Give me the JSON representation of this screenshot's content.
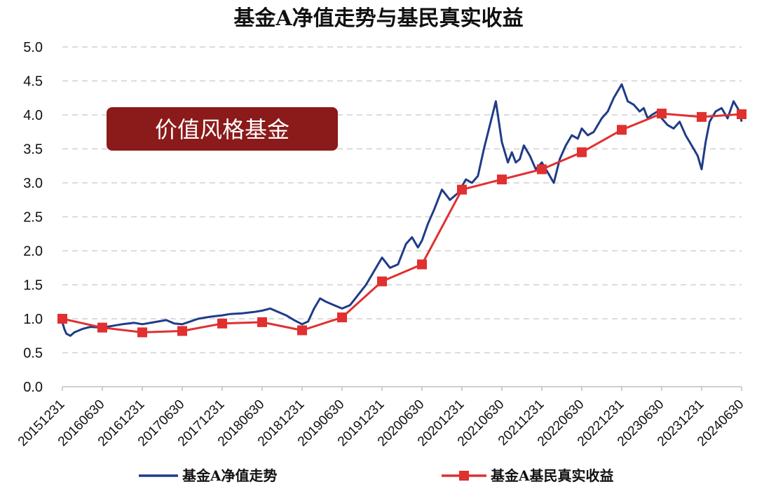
{
  "chart_data": {
    "type": "line",
    "title": "基金A净值走势与基民真实收益",
    "annotation": "价值风格基金",
    "ylim": [
      0.0,
      5.0
    ],
    "yticks": [
      "0.0",
      "0.5",
      "1.0",
      "1.5",
      "2.0",
      "2.5",
      "3.0",
      "3.5",
      "4.0",
      "4.5",
      "5.0"
    ],
    "grid": "horizontal dashed",
    "legend": "bottom",
    "colors": {
      "series1": "#1f3c88",
      "series2": "#e03030",
      "badge": "#8b1a1a"
    },
    "categories": [
      "20151231",
      "20160630",
      "20161231",
      "20170630",
      "20171231",
      "20180630",
      "20181231",
      "20190630",
      "20191231",
      "20200630",
      "20201231",
      "20210630",
      "20211231",
      "20220630",
      "20221231",
      "20230630",
      "20231231",
      "20240630"
    ],
    "series": [
      {
        "name": "基金A净值走势",
        "x": [
          0,
          0.05,
          0.1,
          0.2,
          0.3,
          0.5,
          0.7,
          1.0,
          1.3,
          1.5,
          1.8,
          2.0,
          2.3,
          2.6,
          2.8,
          3.0,
          3.4,
          3.7,
          4.0,
          4.2,
          4.5,
          4.8,
          5.0,
          5.2,
          5.4,
          5.6,
          5.8,
          6.0,
          6.15,
          6.3,
          6.45,
          6.6,
          6.8,
          7.0,
          7.2,
          7.4,
          7.6,
          7.8,
          8.0,
          8.2,
          8.4,
          8.6,
          8.75,
          8.9,
          9.0,
          9.15,
          9.3,
          9.5,
          9.7,
          9.9,
          10.0,
          10.1,
          10.25,
          10.4,
          10.55,
          10.7,
          10.85,
          11.0,
          11.15,
          11.25,
          11.35,
          11.45,
          11.55,
          11.7,
          11.85,
          12.0,
          12.15,
          12.3,
          12.45,
          12.6,
          12.75,
          12.9,
          13.0,
          13.15,
          13.3,
          13.5,
          13.65,
          13.8,
          14.0,
          14.15,
          14.3,
          14.45,
          14.55,
          14.65,
          14.75,
          14.9,
          15.0,
          15.15,
          15.3,
          15.45,
          15.6,
          15.75,
          15.9,
          16.0,
          16.1,
          16.2,
          16.35,
          16.5,
          16.65,
          16.8,
          16.95,
          17.0
        ],
        "values": [
          0.95,
          0.85,
          0.78,
          0.75,
          0.8,
          0.85,
          0.88,
          0.87,
          0.9,
          0.92,
          0.94,
          0.92,
          0.95,
          0.98,
          0.93,
          0.92,
          1.0,
          1.03,
          1.05,
          1.07,
          1.08,
          1.1,
          1.12,
          1.15,
          1.1,
          1.05,
          0.98,
          0.92,
          0.96,
          1.15,
          1.3,
          1.25,
          1.2,
          1.15,
          1.2,
          1.35,
          1.5,
          1.7,
          1.9,
          1.75,
          1.8,
          2.1,
          2.2,
          2.05,
          2.15,
          2.4,
          2.6,
          2.9,
          2.75,
          2.85,
          2.95,
          3.05,
          3.0,
          3.1,
          3.5,
          3.85,
          4.2,
          3.6,
          3.3,
          3.45,
          3.3,
          3.35,
          3.55,
          3.4,
          3.2,
          3.3,
          3.15,
          3.0,
          3.35,
          3.55,
          3.7,
          3.65,
          3.8,
          3.7,
          3.75,
          3.95,
          4.05,
          4.25,
          4.45,
          4.2,
          4.15,
          4.05,
          4.1,
          3.95,
          4.0,
          4.05,
          3.95,
          3.85,
          3.8,
          3.9,
          3.7,
          3.55,
          3.4,
          3.2,
          3.6,
          3.9,
          4.05,
          4.1,
          3.95,
          4.2,
          4.05,
          3.9
        ]
      },
      {
        "name": "基金A基民真实收益",
        "x": [
          0,
          1,
          2,
          3,
          4,
          5,
          6,
          7,
          8,
          9,
          10,
          11,
          12,
          13,
          14,
          15,
          16,
          17
        ],
        "values": [
          1.0,
          0.87,
          0.8,
          0.82,
          0.93,
          0.95,
          0.83,
          1.02,
          1.55,
          1.8,
          2.9,
          3.05,
          3.2,
          3.45,
          3.78,
          4.02,
          3.97,
          4.01
        ]
      }
    ]
  }
}
